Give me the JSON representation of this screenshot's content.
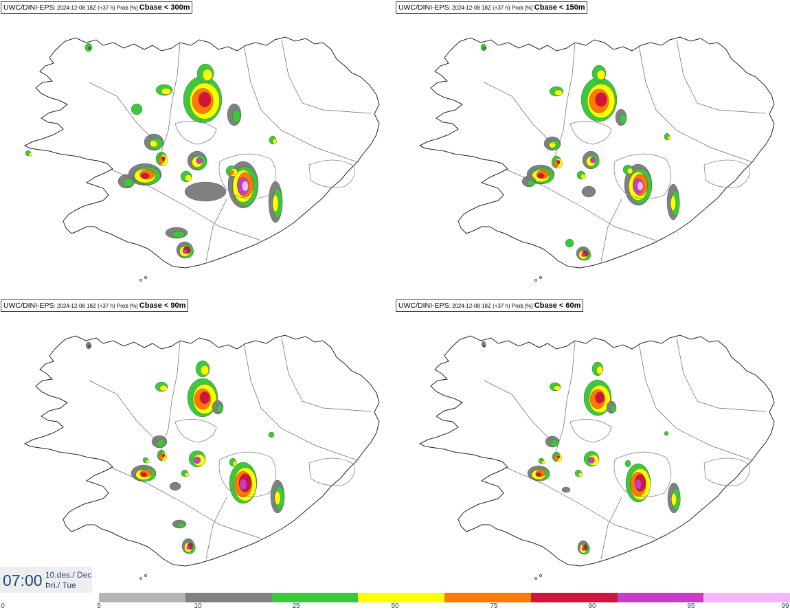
{
  "panels": [
    {
      "model": "UWC/DINI-EPS",
      "meta": ": 2024-12-08 18Z (+37 h) Prob [%] ",
      "cbase": "Cbase < 300m"
    },
    {
      "model": "UWC/DINI-EPS",
      "meta": ": 2024-12-08 18Z (+37 h) Prob [%] ",
      "cbase": "Cbase < 150m"
    },
    {
      "model": "UWC/DINI-EPS",
      "meta": ": 2024-12-08 18Z (+37 h) Prob [%] ",
      "cbase": "Cbase < 90m"
    },
    {
      "model": "UWC/DINI-EPS",
      "meta": ": 2024-12-08 18Z (+37 h) Prob [%] ",
      "cbase": "Cbase < 60m"
    }
  ],
  "valid_time": {
    "time": "07:00",
    "date_line1": "10.des./ Dec",
    "date_line2": "Þri./ Tue"
  },
  "legend": {
    "ticks": [
      "0",
      "5",
      "10",
      "25",
      "50",
      "75",
      "90",
      "95",
      "99"
    ],
    "colors": [
      "#b4b4b4",
      "#808080",
      "#3cc83c",
      "#ffff00",
      "#ff7800",
      "#d2143c",
      "#c83cc8",
      "#f5b4f5"
    ]
  }
}
